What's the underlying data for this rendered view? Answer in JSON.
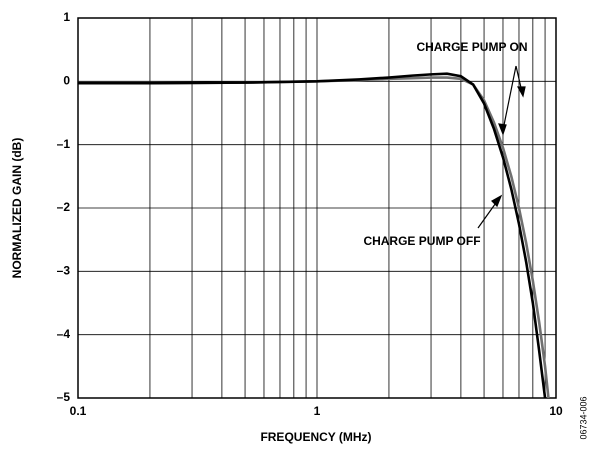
{
  "chart_data": {
    "type": "line",
    "xlabel": "FREQUENCY (MHz)",
    "ylabel": "NORMALIZED GAIN (dB)",
    "x": [
      0.1,
      0.2,
      0.5,
      1,
      1.5,
      2,
      2.5,
      3,
      3.5,
      4,
      4.5,
      5,
      5.5,
      6,
      6.5,
      7,
      7.5,
      8,
      8.5,
      9,
      9.3
    ],
    "series": [
      {
        "name": "CHARGE PUMP ON",
        "color": "#707070",
        "values": [
          -0.03,
          -0.03,
          -0.02,
          0,
          0.02,
          0.04,
          0.05,
          0.06,
          0.06,
          0.04,
          -0.05,
          -0.3,
          -0.65,
          -1.05,
          -1.5,
          -2.0,
          -2.55,
          -3.15,
          -3.8,
          -4.5,
          -5.0
        ]
      },
      {
        "name": "CHARGE PUMP OFF",
        "color": "#000000",
        "values": [
          -0.03,
          -0.03,
          -0.02,
          0,
          0.03,
          0.06,
          0.09,
          0.11,
          0.12,
          0.08,
          -0.05,
          -0.35,
          -0.75,
          -1.2,
          -1.7,
          -2.25,
          -2.85,
          -3.5,
          -4.25,
          -5.0,
          -5.5
        ]
      }
    ],
    "xscale": "log",
    "xlim": [
      0.1,
      10
    ],
    "xticks": [
      0.1,
      1,
      10
    ],
    "xminorticks": [
      0.2,
      0.3,
      0.4,
      0.5,
      0.6,
      0.7,
      0.8,
      0.9,
      2,
      3,
      4,
      5,
      6,
      7,
      8,
      9
    ],
    "ylim": [
      -5,
      1
    ],
    "yticks": [
      {
        "value": -5,
        "label": "–5"
      },
      {
        "value": -4,
        "label": "–4"
      },
      {
        "value": -3,
        "label": "–3"
      },
      {
        "value": -2,
        "label": "–2"
      },
      {
        "value": -1,
        "label": "–1"
      },
      0,
      1
    ],
    "grid": true,
    "side_note": "06734-006"
  }
}
